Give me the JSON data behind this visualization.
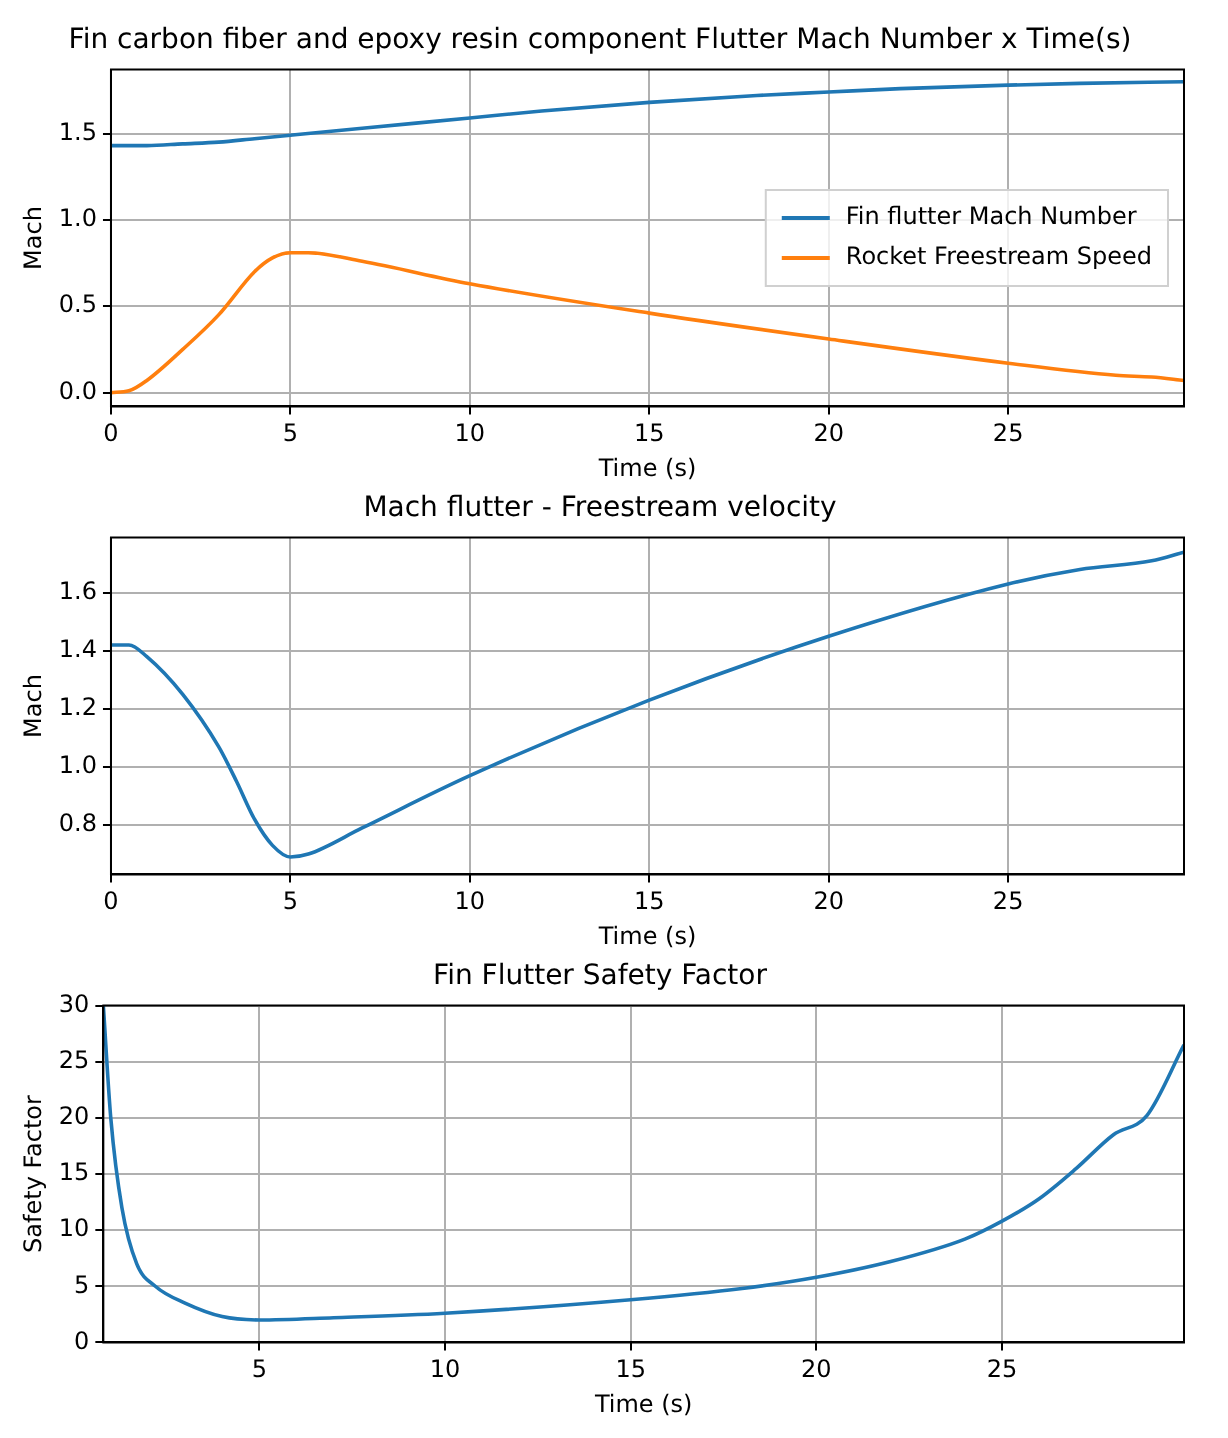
{
  "chart_data": [
    {
      "type": "line",
      "title": "Fin carbon fiber and epoxy resin component Flutter Mach Number x Time(s)",
      "xlabel": "Time (s)",
      "ylabel": "Mach",
      "xlim": [
        0,
        29.9
      ],
      "ylim": [
        -0.08,
        1.87
      ],
      "xticks": [
        0,
        5,
        10,
        15,
        20,
        25
      ],
      "yticks": [
        {
          "value": 0,
          "label": "0.0"
        },
        {
          "value": 0.5,
          "label": "0.5"
        },
        {
          "value": 1,
          "label": "1.0"
        },
        {
          "value": 1.5,
          "label": "1.5"
        }
      ],
      "grid": true,
      "legend": "right",
      "marker": "none",
      "line_style": "solid",
      "series": [
        {
          "name": "Fin flutter Mach Number",
          "color": "#1f77b4",
          "x": [
            0,
            1,
            2,
            3,
            4,
            5,
            7,
            10,
            12,
            15,
            18,
            20,
            22,
            25,
            27,
            29.9
          ],
          "values": [
            1.43,
            1.43,
            1.44,
            1.45,
            1.47,
            1.49,
            1.53,
            1.59,
            1.63,
            1.68,
            1.72,
            1.74,
            1.76,
            1.78,
            1.79,
            1.8
          ]
        },
        {
          "name": "Rocket Freestream Speed",
          "color": "#ff7f0e",
          "x": [
            0,
            0.5,
            1,
            2,
            3,
            4,
            4.5,
            5,
            5.5,
            7,
            10,
            15,
            20,
            25,
            28,
            29,
            29.9
          ],
          "values": [
            0,
            0.01,
            0.07,
            0.25,
            0.45,
            0.7,
            0.78,
            0.81,
            0.81,
            0.76,
            0.63,
            0.46,
            0.31,
            0.17,
            0.1,
            0.09,
            0.07
          ]
        }
      ]
    },
    {
      "type": "line",
      "title": "Mach flutter - Freestream velocity",
      "xlabel": "Time (s)",
      "ylabel": "Mach",
      "xlim": [
        0,
        29.9
      ],
      "ylim": [
        0.63,
        1.79
      ],
      "xticks": [
        0,
        5,
        10,
        15,
        20,
        25
      ],
      "yticks": [
        {
          "value": 0.8,
          "label": "0.8"
        },
        {
          "value": 1,
          "label": "1.0"
        },
        {
          "value": 1.2,
          "label": "1.2"
        },
        {
          "value": 1.4,
          "label": "1.4"
        },
        {
          "value": 1.6,
          "label": "1.6"
        }
      ],
      "grid": true,
      "marker": "none",
      "line_style": "solid",
      "series": [
        {
          "color": "#1f77b4",
          "x": [
            0,
            0.5,
            1,
            2,
            3,
            3.5,
            4,
            4.5,
            5,
            5.5,
            7,
            10,
            15,
            20,
            25,
            27,
            29,
            29.9
          ],
          "values": [
            1.42,
            1.42,
            1.38,
            1.25,
            1.07,
            0.95,
            0.82,
            0.73,
            0.69,
            0.7,
            0.79,
            0.97,
            1.23,
            1.45,
            1.63,
            1.68,
            1.71,
            1.74
          ]
        }
      ]
    },
    {
      "type": "line",
      "title": "Fin Flutter Safety Factor",
      "xlabel": "Time (s)",
      "ylabel": "Safety Factor",
      "xlim": [
        0.8,
        29.9
      ],
      "ylim": [
        0,
        30
      ],
      "xticks": [
        5,
        10,
        15,
        20,
        25
      ],
      "yticks": [
        0,
        5,
        10,
        15,
        20,
        25,
        30
      ],
      "grid": true,
      "marker": "none",
      "line_style": "solid",
      "series": [
        {
          "color": "#1f77b4",
          "x": [
            0.8,
            1,
            1.3,
            1.7,
            2.2,
            3,
            4,
            5,
            7,
            10,
            15,
            18,
            20,
            22,
            24,
            25,
            26,
            27,
            28,
            28.9,
            29.9
          ],
          "values": [
            30,
            20,
            12,
            7,
            5,
            3.5,
            2.3,
            2,
            2.2,
            2.6,
            3.8,
            4.8,
            5.8,
            7.2,
            9.2,
            10.8,
            12.8,
            15.5,
            18.5,
            20.2,
            26.5
          ]
        }
      ]
    }
  ]
}
